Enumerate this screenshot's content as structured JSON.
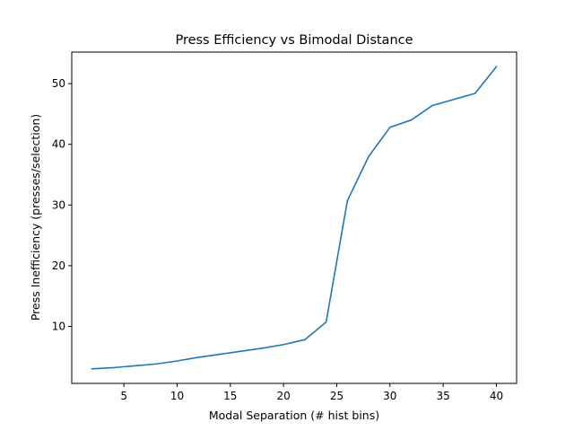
{
  "chart_data": {
    "type": "line",
    "title": "Press Efficiency vs Bimodal Distance",
    "xlabel": "Modal Separation (# hist bins)",
    "ylabel": "Press Inefficiency (presses/selection)",
    "xlim": [
      0.1,
      41.9
    ],
    "ylim": [
      0.6,
      55.2
    ],
    "x_ticks": [
      5,
      10,
      15,
      20,
      25,
      30,
      35,
      40
    ],
    "y_ticks": [
      10,
      20,
      30,
      40,
      50
    ],
    "grid": false,
    "series": [
      {
        "color": "#1f77b4",
        "x": [
          2,
          4,
          6,
          8,
          10,
          12,
          14,
          16,
          18,
          20,
          22,
          24,
          26,
          28,
          30,
          32,
          34,
          36,
          38,
          40
        ],
        "y": [
          3.0,
          3.2,
          3.5,
          3.8,
          4.3,
          4.9,
          5.4,
          5.9,
          6.4,
          7.0,
          7.8,
          10.7,
          30.7,
          38.0,
          42.8,
          44.0,
          46.4,
          47.4,
          48.4,
          52.8
        ]
      }
    ]
  }
}
